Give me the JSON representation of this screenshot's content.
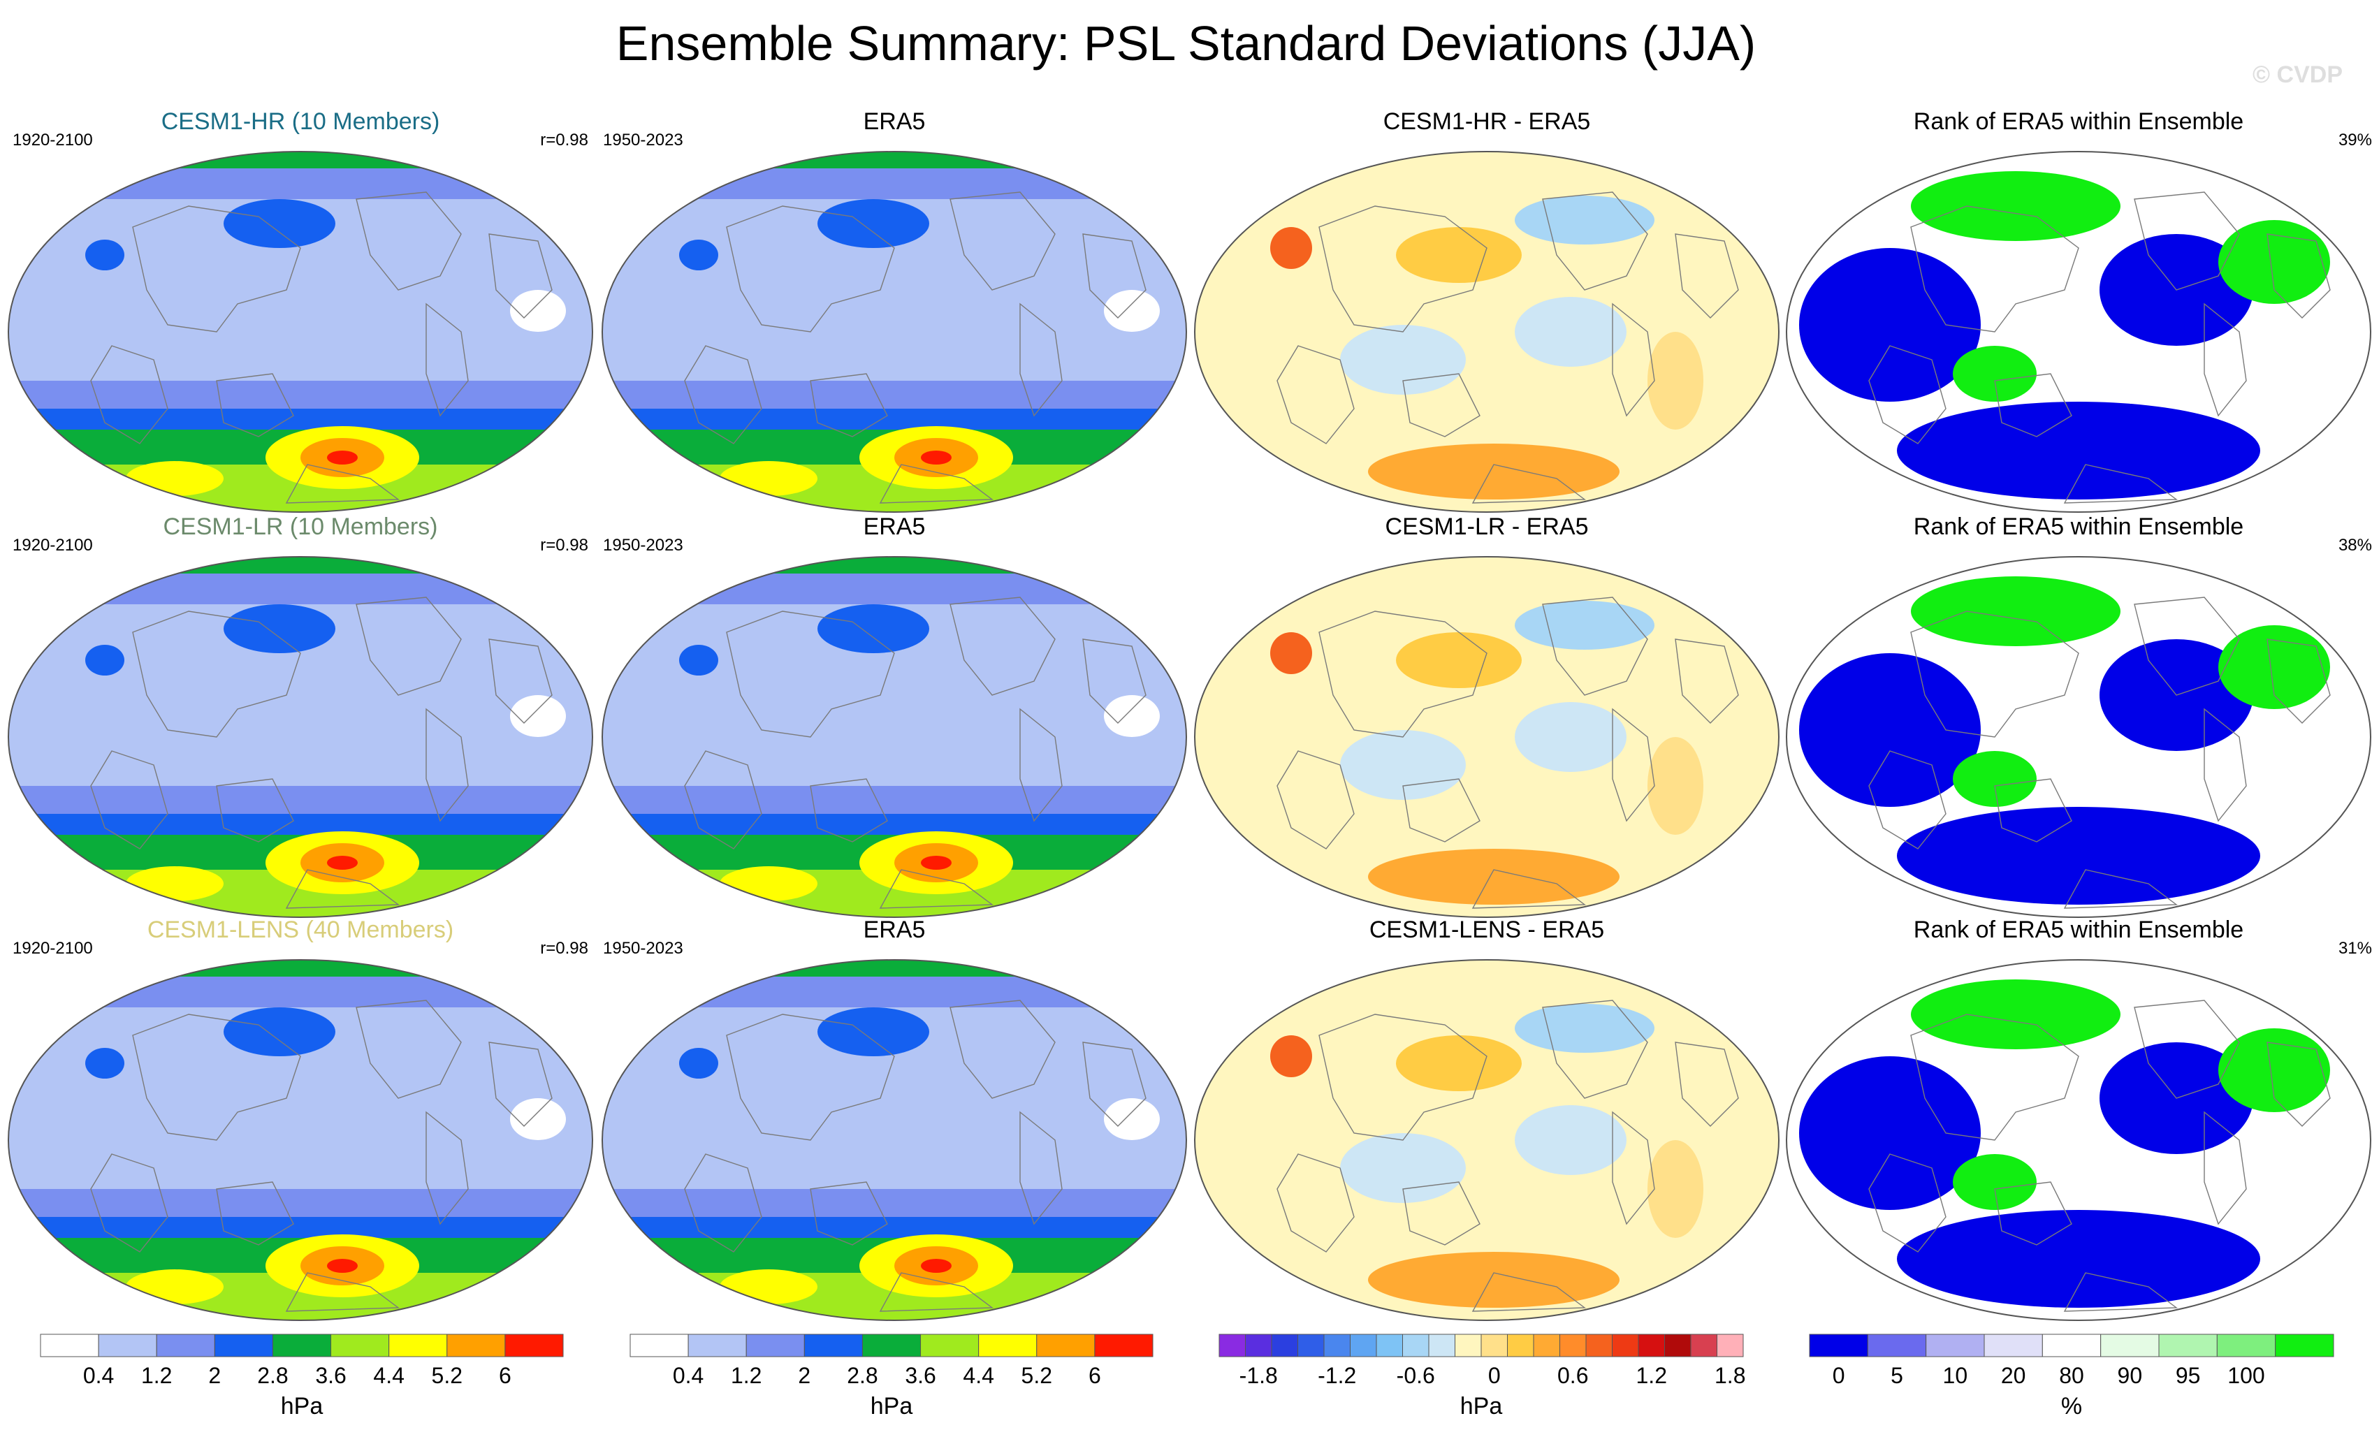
{
  "title": "Ensemble Summary: PSL Standard Deviations (JJA)",
  "credit": "© CVDP",
  "rows": [
    {
      "model": {
        "title": "CESM1-HR (10 Members)",
        "title_color": "#1a6d86",
        "years": "1920-2100",
        "corr": "r=0.98"
      },
      "obs": {
        "title": "ERA5",
        "years": "1950-2023"
      },
      "diff": {
        "title": "CESM1-HR - ERA5"
      },
      "rank": {
        "title": "Rank of ERA5 within Ensemble",
        "pct": "39%"
      }
    },
    {
      "model": {
        "title": "CESM1-LR (10 Members)",
        "title_color": "#6b8a6b",
        "years": "1920-2100",
        "corr": "r=0.98"
      },
      "obs": {
        "title": "ERA5",
        "years": "1950-2023"
      },
      "diff": {
        "title": "CESM1-LR - ERA5"
      },
      "rank": {
        "title": "Rank of ERA5 within Ensemble",
        "pct": "38%"
      }
    },
    {
      "model": {
        "title": "CESM1-LENS (40 Members)",
        "title_color": "#d8cd79",
        "years": "1920-2100",
        "corr": "r=0.98"
      },
      "obs": {
        "title": "ERA5",
        "years": "1950-2023"
      },
      "diff": {
        "title": "CESM1-LENS - ERA5"
      },
      "rank": {
        "title": "Rank of ERA5 within Ensemble",
        "pct": "31%"
      }
    }
  ],
  "colorbars": {
    "std": {
      "unit": "hPa",
      "ticks": [
        "0.4",
        "1.2",
        "2",
        "2.8",
        "3.6",
        "4.4",
        "5.2",
        "6"
      ],
      "colors": [
        "#ffffff",
        "#b3c5f5",
        "#7a8ff0",
        "#1560f0",
        "#0aad3a",
        "#a0ea1e",
        "#ffff00",
        "#ffa000",
        "#ff1a00"
      ]
    },
    "diff": {
      "unit": "hPa",
      "ticks": [
        "-1.8",
        "-1.2",
        "-0.6",
        "0",
        "0.6",
        "1.2",
        "1.8"
      ],
      "colors": [
        "#8a2be2",
        "#5a2ee0",
        "#2b3fe0",
        "#2f5ee8",
        "#4a86ee",
        "#5fa5f2",
        "#7ec3f5",
        "#a8d6f5",
        "#cde6f5",
        "#fff6bf",
        "#ffe08a",
        "#ffcc44",
        "#ffaa33",
        "#ff8c2a",
        "#f5621e",
        "#ee3a14",
        "#d61010",
        "#b00a0a",
        "#d84050",
        "#ffb0b8"
      ]
    },
    "rank": {
      "unit": "%",
      "ticks": [
        "0",
        "5",
        "10",
        "20",
        "80",
        "90",
        "95",
        "100"
      ],
      "colors": [
        "#0000e8",
        "#6a6aee",
        "#b0b0f2",
        "#e0e0f8",
        "#ffffff",
        "#e4fbe4",
        "#b0f5b0",
        "#7eef7e",
        "#11ee11"
      ]
    }
  }
}
